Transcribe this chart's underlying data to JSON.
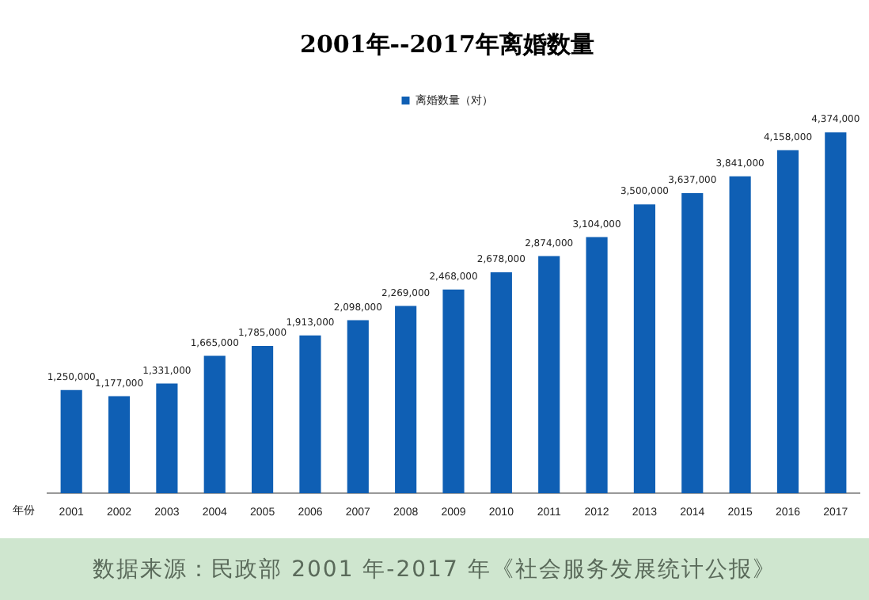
{
  "chart_data": {
    "type": "bar",
    "title": "2001年--2017年离婚数量",
    "xlabel": "年份",
    "categories": [
      "2001",
      "2002",
      "2003",
      "2004",
      "2005",
      "2006",
      "2007",
      "2008",
      "2009",
      "2010",
      "2011",
      "2012",
      "2013",
      "2014",
      "2015",
      "2016",
      "2017"
    ],
    "series": [
      {
        "name": "离婚数量（对）",
        "color": "#0f5fb4",
        "values": [
          1250000,
          1177000,
          1331000,
          1665000,
          1785000,
          1913000,
          2098000,
          2269000,
          2468000,
          2678000,
          2874000,
          3104000,
          3500000,
          3637000,
          3841000,
          4158000,
          4374000
        ],
        "value_labels": [
          "1,250,000",
          "1,177,000",
          "1,331,000",
          "1,665,000",
          "1,785,000",
          "1,913,000",
          "2,098,000",
          "2,269,000",
          "2,468,000",
          "2,678,000",
          "2,874,000",
          "3,104,000",
          "3,500,000",
          "3,637,000",
          "3,841,000",
          "4,158,000",
          "4,374,000"
        ]
      }
    ],
    "tick_labels": "x",
    "legend": "top",
    "grid": false,
    "annotations": [
      "数据来源：民政部 2001 年-2017 年《社会服务发展统计公报》"
    ]
  }
}
